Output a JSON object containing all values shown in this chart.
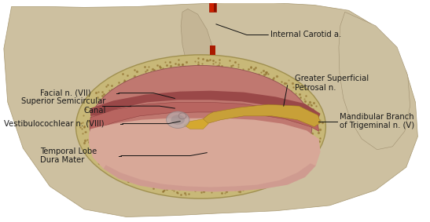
{
  "labels": {
    "internal_carotid": "Internal Carotid a.",
    "facial": "Facial n. (VII)",
    "superior_semicircular": "Superior Semicircular\nCanal",
    "vestibulocochlear": "Vestibulocochlear n. (VIII)",
    "temporal_lobe": "Temporal Lobe\nDura Mater",
    "greater_superficial": "Greater Superficial\nPetrosal n.",
    "mandibular": "Mandibular Branch\nof Trigeminal n. (V)"
  },
  "text_color": "#1a1a1a",
  "label_fontsize": 7.2
}
